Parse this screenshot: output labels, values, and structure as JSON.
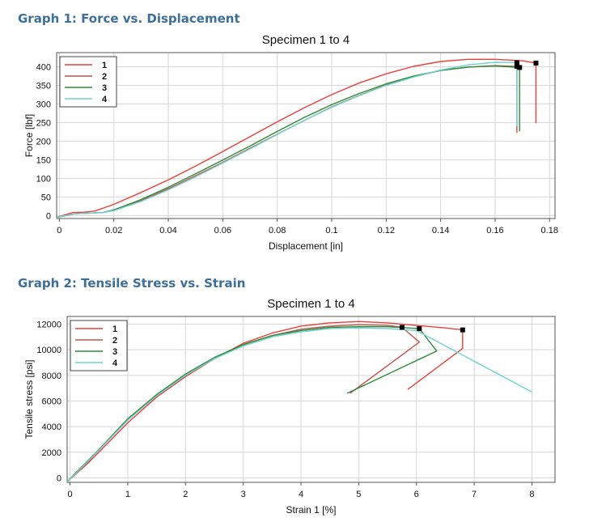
{
  "sections": [
    {
      "heading": "Graph 1: Force vs. Displacement"
    },
    {
      "heading": "Graph 2: Tensile Stress vs. Strain"
    }
  ],
  "colors": {
    "s1": "#e8413c",
    "s2": "#c0554c",
    "s3": "#2e8b3a",
    "s4": "#6fd3d0",
    "heading": "#3d6f99"
  },
  "chart_data": [
    {
      "type": "line",
      "title": "Specimen 1 to 4",
      "xlabel": "Displacement [in]",
      "ylabel": "Force [lbf]",
      "xlim": [
        -0.001,
        0.182
      ],
      "ylim": [
        -8,
        438
      ],
      "xticks": [
        0,
        0.02,
        0.04,
        0.06,
        0.08,
        0.1,
        0.12,
        0.14,
        0.16,
        0.18
      ],
      "xtick_labels": [
        "0",
        "0.02",
        "0.04",
        "0.06",
        "0.08",
        "0.1",
        "0.12",
        "0.14",
        "0.16",
        "0.18"
      ],
      "yticks": [
        0,
        50,
        100,
        150,
        200,
        250,
        300,
        350,
        400
      ],
      "ytick_labels": [
        "0",
        "50",
        "100",
        "150",
        "200",
        "250",
        "300",
        "350",
        "400"
      ],
      "grid": true,
      "legend_position": "top-left",
      "series": [
        {
          "name": "1",
          "color": "#e8413c",
          "x": [
            -0.001,
            0.005,
            0.009,
            0.013,
            0.02,
            0.03,
            0.04,
            0.05,
            0.06,
            0.07,
            0.08,
            0.09,
            0.1,
            0.11,
            0.12,
            0.13,
            0.14,
            0.15,
            0.16,
            0.17,
            0.175,
            0.175
          ],
          "y": [
            -5,
            8,
            9,
            12,
            30,
            62,
            96,
            133,
            172,
            212,
            252,
            290,
            325,
            356,
            381,
            401,
            414,
            420,
            420,
            416,
            410,
            248
          ],
          "endpoint": [
            0.175,
            410
          ]
        },
        {
          "name": "2",
          "color": "#c0554c",
          "x": [
            -0.001,
            0.006,
            0.01,
            0.016,
            0.02,
            0.03,
            0.04,
            0.05,
            0.06,
            0.07,
            0.08,
            0.09,
            0.1,
            0.11,
            0.12,
            0.13,
            0.14,
            0.15,
            0.16,
            0.168,
            0.168
          ],
          "y": [
            -5,
            5,
            6,
            8,
            15,
            40,
            72,
            107,
            143,
            181,
            219,
            256,
            292,
            323,
            351,
            373,
            390,
            399,
            403,
            401,
            222
          ],
          "endpoint": [
            0.168,
            401
          ]
        },
        {
          "name": "3",
          "color": "#2e8b3a",
          "x": [
            -0.001,
            0.006,
            0.01,
            0.016,
            0.02,
            0.03,
            0.04,
            0.05,
            0.06,
            0.07,
            0.08,
            0.09,
            0.1,
            0.11,
            0.12,
            0.13,
            0.14,
            0.15,
            0.16,
            0.169,
            0.169
          ],
          "y": [
            -5,
            5,
            6,
            8,
            15,
            43,
            76,
            112,
            149,
            187,
            226,
            264,
            298,
            328,
            354,
            375,
            390,
            399,
            402,
            398,
            226
          ],
          "endpoint": [
            0.169,
            398
          ]
        },
        {
          "name": "4",
          "color": "#6fd3d0",
          "x": [
            -0.001,
            0.006,
            0.01,
            0.016,
            0.02,
            0.03,
            0.04,
            0.05,
            0.06,
            0.07,
            0.08,
            0.09,
            0.1,
            0.11,
            0.12,
            0.13,
            0.14,
            0.15,
            0.16,
            0.168,
            0.168
          ],
          "y": [
            -5,
            5,
            6,
            8,
            13,
            38,
            69,
            104,
            141,
            179,
            218,
            256,
            291,
            322,
            350,
            372,
            391,
            405,
            412,
            411,
            240
          ],
          "endpoint": [
            0.168,
            411
          ]
        }
      ]
    },
    {
      "type": "line",
      "title": "Specimen 1 to 4",
      "xlabel": "Strain 1 [%]",
      "ylabel": "Tensile stress [psi]",
      "xlim": [
        -0.05,
        8.4
      ],
      "ylim": [
        -350,
        12600
      ],
      "xticks": [
        0,
        1,
        2,
        3,
        4,
        5,
        6,
        7,
        8
      ],
      "xtick_labels": [
        "0",
        "1",
        "2",
        "3",
        "4",
        "5",
        "6",
        "7",
        "8"
      ],
      "yticks": [
        0,
        2000,
        4000,
        6000,
        8000,
        10000,
        12000
      ],
      "ytick_labels": [
        "0",
        "2000",
        "4000",
        "6000",
        "8000",
        "10000",
        "12000"
      ],
      "grid": true,
      "legend_position": "top-left",
      "series": [
        {
          "name": "1",
          "color": "#e8413c",
          "x": [
            -0.05,
            0.1,
            0.3,
            0.5,
            1,
            1.5,
            2,
            2.5,
            3,
            3.5,
            4,
            4.5,
            5,
            5.5,
            6,
            6.5,
            6.8,
            6.8,
            5.85
          ],
          "y": [
            -300,
            300,
            1100,
            2000,
            4300,
            6300,
            7900,
            9300,
            10500,
            11300,
            11850,
            12100,
            12200,
            12100,
            11900,
            11700,
            11550,
            10100,
            6900
          ],
          "endpoint": [
            6.8,
            11550
          ]
        },
        {
          "name": "2",
          "color": "#c0554c",
          "x": [
            -0.05,
            0.1,
            0.3,
            0.5,
            1,
            1.5,
            2,
            2.5,
            3,
            3.5,
            4,
            4.5,
            5,
            5.5,
            5.75,
            6.05,
            4.85
          ],
          "y": [
            -300,
            400,
            1200,
            2200,
            4600,
            6500,
            8000,
            9300,
            10400,
            11100,
            11600,
            11850,
            11950,
            11900,
            11750,
            10600,
            6600
          ],
          "endpoint": [
            5.75,
            11750
          ]
        },
        {
          "name": "3",
          "color": "#2e8b3a",
          "x": [
            -0.05,
            0.1,
            0.3,
            0.5,
            1,
            1.5,
            2,
            2.5,
            3,
            3.5,
            4,
            4.5,
            5,
            5.5,
            6.05,
            6.35,
            4.8
          ],
          "y": [
            -300,
            400,
            1300,
            2200,
            4600,
            6500,
            8100,
            9400,
            10400,
            11100,
            11500,
            11750,
            11800,
            11800,
            11650,
            9900,
            6600
          ],
          "endpoint": [
            6.05,
            11650
          ]
        },
        {
          "name": "4",
          "color": "#6fd3d0",
          "x": [
            -0.05,
            0.1,
            0.3,
            0.5,
            1,
            1.5,
            2,
            2.5,
            3,
            3.5,
            4,
            4.5,
            5,
            5.5,
            6,
            8
          ],
          "y": [
            -300,
            350,
            1250,
            2150,
            4500,
            6400,
            8000,
            9300,
            10300,
            11000,
            11400,
            11650,
            11700,
            11650,
            11500,
            6700
          ]
        }
      ]
    }
  ]
}
